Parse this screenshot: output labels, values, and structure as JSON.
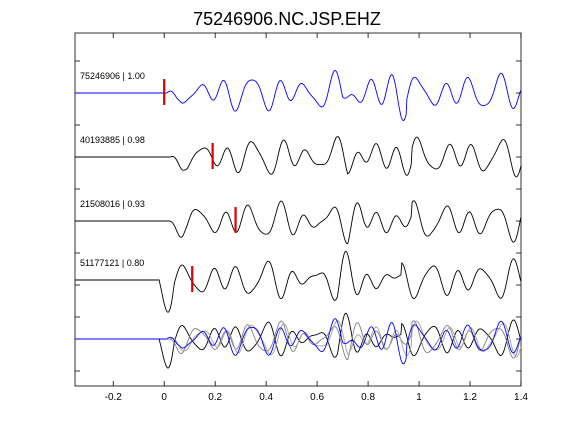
{
  "chart_data": {
    "type": "line",
    "title": "75246906.NC.JSP.EHZ",
    "xlabel": "",
    "ylabel": "",
    "xlim": [
      -0.35,
      1.4
    ],
    "xticks": [
      -0.2,
      0,
      0.2,
      0.4,
      0.6,
      0.8,
      1,
      1.2,
      1.4
    ],
    "xtick_labels": [
      "-0.2",
      "0",
      "0.2",
      "0.4",
      "0.6",
      "0.8",
      "1",
      "1.2",
      "1.4"
    ],
    "grid": false,
    "traces": [
      {
        "label": "75246906 | 1.00",
        "color": "#0000ff",
        "onset": 0.0,
        "pick": 0.0
      },
      {
        "label": "40193885 | 0.98",
        "color": "#000000",
        "onset": 0.02,
        "pick": 0.19
      },
      {
        "label": "21508016 | 0.93",
        "color": "#000000",
        "onset": 0.02,
        "pick": 0.28
      },
      {
        "label": "51177121 | 0.80",
        "color": "#000000",
        "onset": -0.02,
        "pick": 0.11
      }
    ],
    "stack": {
      "label": "",
      "colors": [
        "#0000ff",
        "#000000",
        "#7f7f7f",
        "#a0a0a0"
      ]
    },
    "pick_color": "#dd0000"
  }
}
